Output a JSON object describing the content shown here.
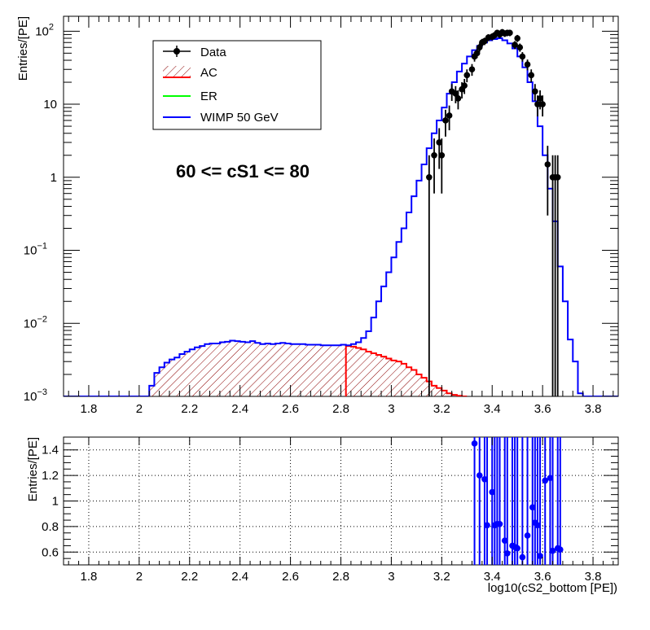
{
  "chart_data": [
    {
      "type": "histogram",
      "panel": "top",
      "ylabel": "Entries/[PE]",
      "y_scale": "log",
      "ylim": [
        0.001,
        160
      ],
      "xlim": [
        1.7,
        3.9
      ],
      "x_ticks": [
        1.8,
        2.0,
        2.2,
        2.4,
        2.6,
        2.8,
        3.0,
        3.2,
        3.4,
        3.6,
        3.8
      ],
      "x_tick_labels": [
        "1.8",
        "2",
        "2.2",
        "2.4",
        "2.6",
        "2.8",
        "3",
        "3.2",
        "3.4",
        "3.6",
        "3.8"
      ],
      "y_ticks": [
        0.001,
        0.01,
        0.1,
        1,
        10,
        100
      ],
      "y_tick_labels": [
        {
          "base": "10",
          "exp": "−3"
        },
        {
          "base": "10",
          "exp": "−2"
        },
        {
          "base": "10",
          "exp": "−1"
        },
        {
          "base": "1",
          "exp": ""
        },
        {
          "base": "10",
          "exp": ""
        },
        {
          "base": "10",
          "exp": "2"
        }
      ],
      "annotation": "60 <= cS1 <= 80",
      "grid": false,
      "legend_position": "top-left",
      "legend": [
        {
          "label": "Data",
          "style": "marker-line",
          "color": "#000000"
        },
        {
          "label": "AC",
          "style": "hatched-fill",
          "color": "#ff0000"
        },
        {
          "label": "ER",
          "style": "line",
          "color": "#00ff00"
        },
        {
          "label": "WIMP 50 GeV",
          "style": "line",
          "color": "#0000ff"
        }
      ],
      "series": [
        {
          "name": "Data",
          "color": "#000000",
          "kind": "points_with_errors",
          "x": [
            3.15,
            3.17,
            3.19,
            3.2,
            3.215,
            3.23,
            3.24,
            3.255,
            3.265,
            3.28,
            3.29,
            3.3,
            3.32,
            3.33,
            3.34,
            3.35,
            3.36,
            3.37,
            3.385,
            3.4,
            3.41,
            3.42,
            3.43,
            3.44,
            3.45,
            3.46,
            3.47,
            3.49,
            3.5,
            3.51,
            3.52,
            3.54,
            3.555,
            3.57,
            3.58,
            3.59,
            3.6,
            3.62,
            3.64,
            3.65,
            3.66
          ],
          "y": [
            1,
            2,
            3,
            2,
            6,
            7,
            15,
            14,
            12,
            16,
            18,
            25,
            30,
            45,
            50,
            60,
            70,
            73,
            82,
            84,
            88,
            95,
            90,
            97,
            93,
            95,
            95,
            65,
            80,
            60,
            45,
            35,
            25,
            15,
            10,
            12,
            10,
            1.5,
            1,
            1,
            1
          ],
          "y_err": [
            1,
            1.4,
            1.7,
            1.4,
            2.4,
            2.6,
            3.9,
            3.7,
            3.5,
            4,
            4.2,
            5,
            5.5,
            6.7,
            7.1,
            7.7,
            8.4,
            8.5,
            9,
            9.2,
            9.4,
            9.7,
            9.5,
            9.8,
            9.6,
            9.7,
            9.7,
            8.1,
            8.9,
            7.7,
            6.7,
            5.9,
            5,
            3.9,
            3.2,
            3.5,
            3.2,
            1.2,
            1,
            1,
            1
          ]
        },
        {
          "name": "WIMP 50 GeV",
          "color": "#0000ff",
          "kind": "step",
          "bin_width": 0.02,
          "x": [
            2.05,
            2.07,
            2.09,
            2.11,
            2.13,
            2.15,
            2.17,
            2.19,
            2.21,
            2.23,
            2.25,
            2.27,
            2.29,
            2.31,
            2.33,
            2.35,
            2.37,
            2.39,
            2.41,
            2.43,
            2.45,
            2.47,
            2.49,
            2.51,
            2.53,
            2.55,
            2.57,
            2.59,
            2.61,
            2.63,
            2.65,
            2.67,
            2.69,
            2.71,
            2.73,
            2.75,
            2.77,
            2.79,
            2.81,
            2.83,
            2.85,
            2.87,
            2.89,
            2.91,
            2.93,
            2.95,
            2.97,
            2.99,
            3.01,
            3.03,
            3.05,
            3.07,
            3.09,
            3.11,
            3.13,
            3.15,
            3.17,
            3.19,
            3.21,
            3.23,
            3.25,
            3.27,
            3.29,
            3.31,
            3.33,
            3.35,
            3.37,
            3.39,
            3.41,
            3.43,
            3.45,
            3.47,
            3.49,
            3.51,
            3.53,
            3.55,
            3.57,
            3.59,
            3.61,
            3.63,
            3.65,
            3.67,
            3.69,
            3.71,
            3.73,
            3.75
          ],
          "y": [
            0.0014,
            0.0021,
            0.0025,
            0.0029,
            0.0032,
            0.0034,
            0.0038,
            0.0041,
            0.0044,
            0.0047,
            0.0049,
            0.0052,
            0.0053,
            0.0053,
            0.0055,
            0.0056,
            0.0058,
            0.0057,
            0.0056,
            0.0055,
            0.0057,
            0.0054,
            0.0052,
            0.0053,
            0.0052,
            0.0053,
            0.0054,
            0.0053,
            0.0052,
            0.0052,
            0.0052,
            0.0051,
            0.0051,
            0.0051,
            0.005,
            0.005,
            0.005,
            0.005,
            0.0051,
            0.005,
            0.0052,
            0.0055,
            0.0063,
            0.0078,
            0.012,
            0.02,
            0.032,
            0.05,
            0.08,
            0.13,
            0.2,
            0.33,
            0.55,
            0.9,
            1.5,
            2.5,
            4.0,
            6.0,
            9.0,
            14,
            20,
            28,
            36,
            45,
            55,
            63,
            70,
            75,
            78,
            80,
            75,
            68,
            58,
            45,
            32,
            20,
            11,
            5,
            2,
            0.7,
            0.25,
            0.06,
            0.02,
            0.006,
            0.003,
            0.0011
          ]
        },
        {
          "name": "AC",
          "color": "#ff0000",
          "kind": "step_hatched",
          "bin_width": 0.02,
          "x": [
            2.83,
            2.85,
            2.87,
            2.89,
            2.91,
            2.93,
            2.95,
            2.97,
            2.99,
            3.01,
            3.03,
            3.05,
            3.07,
            3.09,
            3.11,
            3.13,
            3.15,
            3.17,
            3.19,
            3.21,
            3.23,
            3.25,
            3.27,
            3.29
          ],
          "y": [
            0.0049,
            0.0048,
            0.0046,
            0.0044,
            0.0041,
            0.0039,
            0.0037,
            0.0035,
            0.0033,
            0.0031,
            0.003,
            0.0028,
            0.0025,
            0.0023,
            0.002,
            0.0018,
            0.0016,
            0.0014,
            0.0013,
            0.0012,
            0.0011,
            0.00105,
            0.00102,
            0.001
          ]
        },
        {
          "name": "ER",
          "color": "#00ff00",
          "kind": "step",
          "x": [],
          "y": []
        }
      ]
    },
    {
      "type": "scatter",
      "panel": "bottom",
      "ylabel": "Entries/[PE]",
      "xlabel": "log10(cS2_bottom [PE])",
      "xlim": [
        1.7,
        3.9
      ],
      "ylim": [
        0.5,
        1.5
      ],
      "x_ticks": [
        1.8,
        2.0,
        2.2,
        2.4,
        2.6,
        2.8,
        3.0,
        3.2,
        3.4,
        3.6,
        3.8
      ],
      "x_tick_labels": [
        "1.8",
        "2",
        "2.2",
        "2.4",
        "2.6",
        "2.8",
        "3",
        "3.2",
        "3.4",
        "3.6",
        "3.8"
      ],
      "y_ticks": [
        0.6,
        0.8,
        1.0,
        1.2,
        1.4
      ],
      "y_tick_labels": [
        "0.6",
        "0.8",
        "1",
        "1.2",
        "1.4"
      ],
      "grid": true,
      "series": [
        {
          "color": "#0000ff",
          "x": [
            3.33,
            3.35,
            3.37,
            3.38,
            3.4,
            3.41,
            3.42,
            3.43,
            3.45,
            3.46,
            3.48,
            3.49,
            3.5,
            3.52,
            3.54,
            3.56,
            3.57,
            3.58,
            3.59,
            3.61,
            3.63,
            3.64,
            3.66,
            3.67
          ],
          "y": [
            1.45,
            1.2,
            1.17,
            0.81,
            1.07,
            0.81,
            0.82,
            0.82,
            0.69,
            0.59,
            0.65,
            0.64,
            0.63,
            0.56,
            0.73,
            0.95,
            0.83,
            0.81,
            0.57,
            1.16,
            1.18,
            0.61,
            0.63,
            0.62
          ],
          "error_bars": "vertical, extending beyond plot range"
        }
      ]
    }
  ]
}
